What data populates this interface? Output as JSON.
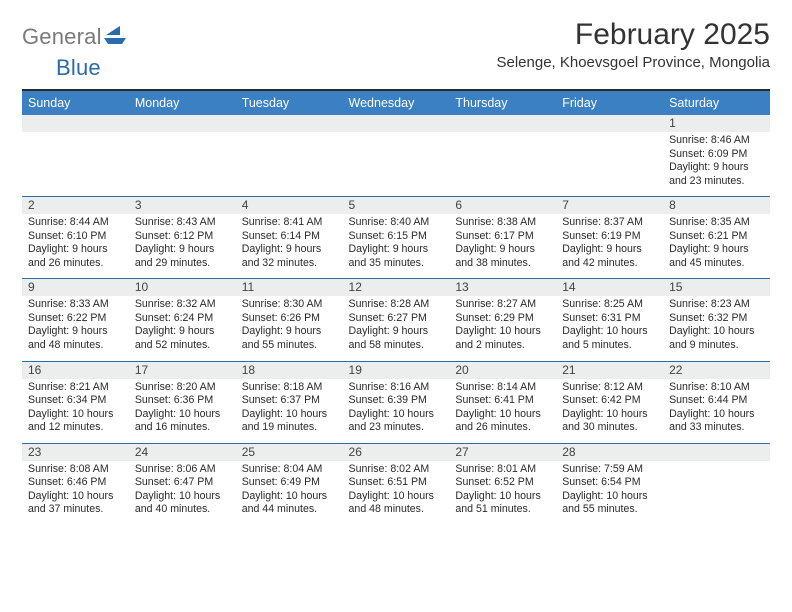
{
  "brand": {
    "general": "General",
    "blue": "Blue"
  },
  "colors": {
    "header_bg": "#3a80c2",
    "header_text": "#ffffff",
    "daynum_bg": "#eceded",
    "rule": "#2a6bab",
    "logo_gray": "#7a7a7a",
    "logo_blue": "#2a6bab"
  },
  "title": "February 2025",
  "location": "Selenge, Khoevsgoel Province, Mongolia",
  "dow": [
    "Sunday",
    "Monday",
    "Tuesday",
    "Wednesday",
    "Thursday",
    "Friday",
    "Saturday"
  ],
  "weeks": [
    [
      {
        "n": "",
        "sr": "",
        "ss": "",
        "dl": ""
      },
      {
        "n": "",
        "sr": "",
        "ss": "",
        "dl": ""
      },
      {
        "n": "",
        "sr": "",
        "ss": "",
        "dl": ""
      },
      {
        "n": "",
        "sr": "",
        "ss": "",
        "dl": ""
      },
      {
        "n": "",
        "sr": "",
        "ss": "",
        "dl": ""
      },
      {
        "n": "",
        "sr": "",
        "ss": "",
        "dl": ""
      },
      {
        "n": "1",
        "sr": "Sunrise: 8:46 AM",
        "ss": "Sunset: 6:09 PM",
        "dl": "Daylight: 9 hours and 23 minutes."
      }
    ],
    [
      {
        "n": "2",
        "sr": "Sunrise: 8:44 AM",
        "ss": "Sunset: 6:10 PM",
        "dl": "Daylight: 9 hours and 26 minutes."
      },
      {
        "n": "3",
        "sr": "Sunrise: 8:43 AM",
        "ss": "Sunset: 6:12 PM",
        "dl": "Daylight: 9 hours and 29 minutes."
      },
      {
        "n": "4",
        "sr": "Sunrise: 8:41 AM",
        "ss": "Sunset: 6:14 PM",
        "dl": "Daylight: 9 hours and 32 minutes."
      },
      {
        "n": "5",
        "sr": "Sunrise: 8:40 AM",
        "ss": "Sunset: 6:15 PM",
        "dl": "Daylight: 9 hours and 35 minutes."
      },
      {
        "n": "6",
        "sr": "Sunrise: 8:38 AM",
        "ss": "Sunset: 6:17 PM",
        "dl": "Daylight: 9 hours and 38 minutes."
      },
      {
        "n": "7",
        "sr": "Sunrise: 8:37 AM",
        "ss": "Sunset: 6:19 PM",
        "dl": "Daylight: 9 hours and 42 minutes."
      },
      {
        "n": "8",
        "sr": "Sunrise: 8:35 AM",
        "ss": "Sunset: 6:21 PM",
        "dl": "Daylight: 9 hours and 45 minutes."
      }
    ],
    [
      {
        "n": "9",
        "sr": "Sunrise: 8:33 AM",
        "ss": "Sunset: 6:22 PM",
        "dl": "Daylight: 9 hours and 48 minutes."
      },
      {
        "n": "10",
        "sr": "Sunrise: 8:32 AM",
        "ss": "Sunset: 6:24 PM",
        "dl": "Daylight: 9 hours and 52 minutes."
      },
      {
        "n": "11",
        "sr": "Sunrise: 8:30 AM",
        "ss": "Sunset: 6:26 PM",
        "dl": "Daylight: 9 hours and 55 minutes."
      },
      {
        "n": "12",
        "sr": "Sunrise: 8:28 AM",
        "ss": "Sunset: 6:27 PM",
        "dl": "Daylight: 9 hours and 58 minutes."
      },
      {
        "n": "13",
        "sr": "Sunrise: 8:27 AM",
        "ss": "Sunset: 6:29 PM",
        "dl": "Daylight: 10 hours and 2 minutes."
      },
      {
        "n": "14",
        "sr": "Sunrise: 8:25 AM",
        "ss": "Sunset: 6:31 PM",
        "dl": "Daylight: 10 hours and 5 minutes."
      },
      {
        "n": "15",
        "sr": "Sunrise: 8:23 AM",
        "ss": "Sunset: 6:32 PM",
        "dl": "Daylight: 10 hours and 9 minutes."
      }
    ],
    [
      {
        "n": "16",
        "sr": "Sunrise: 8:21 AM",
        "ss": "Sunset: 6:34 PM",
        "dl": "Daylight: 10 hours and 12 minutes."
      },
      {
        "n": "17",
        "sr": "Sunrise: 8:20 AM",
        "ss": "Sunset: 6:36 PM",
        "dl": "Daylight: 10 hours and 16 minutes."
      },
      {
        "n": "18",
        "sr": "Sunrise: 8:18 AM",
        "ss": "Sunset: 6:37 PM",
        "dl": "Daylight: 10 hours and 19 minutes."
      },
      {
        "n": "19",
        "sr": "Sunrise: 8:16 AM",
        "ss": "Sunset: 6:39 PM",
        "dl": "Daylight: 10 hours and 23 minutes."
      },
      {
        "n": "20",
        "sr": "Sunrise: 8:14 AM",
        "ss": "Sunset: 6:41 PM",
        "dl": "Daylight: 10 hours and 26 minutes."
      },
      {
        "n": "21",
        "sr": "Sunrise: 8:12 AM",
        "ss": "Sunset: 6:42 PM",
        "dl": "Daylight: 10 hours and 30 minutes."
      },
      {
        "n": "22",
        "sr": "Sunrise: 8:10 AM",
        "ss": "Sunset: 6:44 PM",
        "dl": "Daylight: 10 hours and 33 minutes."
      }
    ],
    [
      {
        "n": "23",
        "sr": "Sunrise: 8:08 AM",
        "ss": "Sunset: 6:46 PM",
        "dl": "Daylight: 10 hours and 37 minutes."
      },
      {
        "n": "24",
        "sr": "Sunrise: 8:06 AM",
        "ss": "Sunset: 6:47 PM",
        "dl": "Daylight: 10 hours and 40 minutes."
      },
      {
        "n": "25",
        "sr": "Sunrise: 8:04 AM",
        "ss": "Sunset: 6:49 PM",
        "dl": "Daylight: 10 hours and 44 minutes."
      },
      {
        "n": "26",
        "sr": "Sunrise: 8:02 AM",
        "ss": "Sunset: 6:51 PM",
        "dl": "Daylight: 10 hours and 48 minutes."
      },
      {
        "n": "27",
        "sr": "Sunrise: 8:01 AM",
        "ss": "Sunset: 6:52 PM",
        "dl": "Daylight: 10 hours and 51 minutes."
      },
      {
        "n": "28",
        "sr": "Sunrise: 7:59 AM",
        "ss": "Sunset: 6:54 PM",
        "dl": "Daylight: 10 hours and 55 minutes."
      },
      {
        "n": "",
        "sr": "",
        "ss": "",
        "dl": ""
      }
    ]
  ]
}
